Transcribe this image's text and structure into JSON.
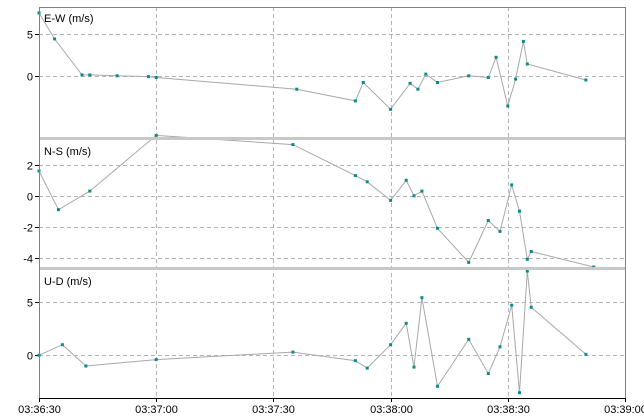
{
  "chart_data": [
    {
      "type": "line",
      "title": "E-W (m/s)",
      "ylim": [
        -7.3,
        8.2
      ],
      "yticks": [
        5,
        0
      ],
      "x": [
        "03:36:30",
        "03:36:34",
        "03:36:41",
        "03:36:43",
        "03:36:50",
        "03:36:58",
        "03:37:00",
        "03:37:36",
        "03:37:51",
        "03:37:53",
        "03:38:00",
        "03:38:05",
        "03:38:07",
        "03:38:09",
        "03:38:12",
        "03:38:20",
        "03:38:25",
        "03:38:27",
        "03:38:30",
        "03:38:32",
        "03:38:34",
        "03:38:35",
        "03:38:50"
      ],
      "values": [
        7.5,
        4.4,
        0.1,
        0.1,
        0,
        -0.1,
        -0.2,
        -1.6,
        -3.0,
        -0.8,
        -4.0,
        -0.9,
        -1.6,
        0.2,
        -0.8,
        0.0,
        -0.2,
        2.2,
        -3.6,
        -0.4,
        4.1,
        1.4,
        -0.5
      ]
    },
    {
      "type": "line",
      "title": "N-S (m/s)",
      "ylim": [
        -4.6,
        3.6
      ],
      "yticks": [
        2,
        0,
        -2,
        -4
      ],
      "x": [
        "03:36:30",
        "03:36:35",
        "03:36:43",
        "03:37:00",
        "03:37:35",
        "03:37:51",
        "03:37:54",
        "03:38:00",
        "03:38:04",
        "03:38:06",
        "03:38:08",
        "03:38:12",
        "03:38:20",
        "03:38:25",
        "03:38:28",
        "03:38:31",
        "03:38:33",
        "03:38:35",
        "03:38:36",
        "03:38:52"
      ],
      "values": [
        1.6,
        -0.9,
        0.3,
        3.9,
        3.3,
        1.3,
        0.9,
        -0.3,
        1.0,
        0.0,
        0.3,
        -2.1,
        -4.3,
        -1.6,
        -2.3,
        0.7,
        -1.0,
        -4.1,
        -3.6,
        -4.6
      ]
    },
    {
      "type": "line",
      "title": "U-D (m/s)",
      "ylim": [
        -4.0,
        8.0
      ],
      "yticks": [
        5,
        0
      ],
      "x": [
        "03:36:30",
        "03:36:36",
        "03:36:42",
        "03:37:00",
        "03:37:35",
        "03:37:51",
        "03:37:54",
        "03:38:00",
        "03:38:04",
        "03:38:06",
        "03:38:08",
        "03:38:12",
        "03:38:20",
        "03:38:25",
        "03:38:28",
        "03:38:31",
        "03:38:33",
        "03:38:35",
        "03:38:36",
        "03:38:50"
      ],
      "values": [
        0.0,
        1.0,
        -1.0,
        -0.4,
        0.3,
        -0.5,
        -1.2,
        1.0,
        3.0,
        -1.1,
        5.4,
        -2.9,
        1.5,
        -1.7,
        0.8,
        4.7,
        -3.5,
        7.9,
        4.5,
        0.1
      ]
    }
  ],
  "x_axis": {
    "ticks": [
      "03:36:30",
      "03:37:00",
      "03:37:30",
      "03:38:00",
      "03:38:30",
      "03:39:00"
    ],
    "xlim": [
      "03:36:30",
      "03:39:00"
    ]
  },
  "colors": {
    "line": "#a8a8a8",
    "marker": "#0e8a8a",
    "grid": "#b4b4b4"
  }
}
